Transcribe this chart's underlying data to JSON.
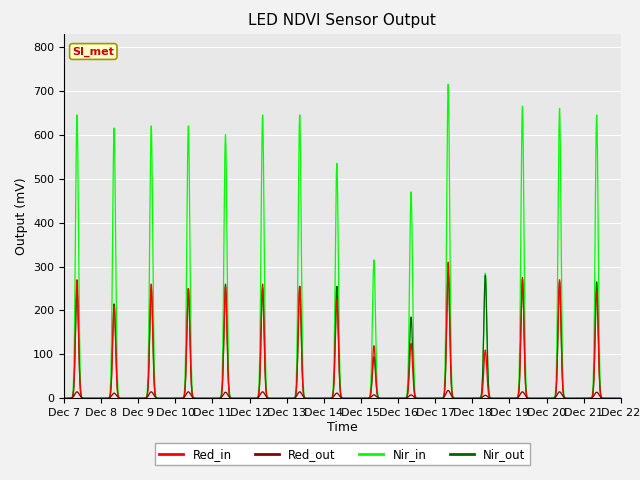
{
  "title": "LED NDVI Sensor Output",
  "ylabel": "Output (mV)",
  "xlabel": "Time",
  "ylim": [
    0,
    830
  ],
  "yticks": [
    0,
    100,
    200,
    300,
    400,
    500,
    600,
    700,
    800
  ],
  "annotation_text": "SI_met",
  "annotation_color": "#cc0000",
  "annotation_bg": "#ffffcc",
  "annotation_border": "#999900",
  "plot_bg_color": "#e8e8e8",
  "fig_bg_color": "#f2f2f2",
  "legend_entries": [
    "Red_in",
    "Red_out",
    "Nir_in",
    "Nir_out"
  ],
  "legend_colors": [
    "#ff0000",
    "#8b0000",
    "#00ff00",
    "#006400"
  ],
  "x_tick_labels": [
    "Dec 7",
    "Dec 8",
    "Dec 9",
    "Dec 10",
    "Dec 11",
    "Dec 12",
    "Dec 13",
    "Dec 14",
    "Dec 15",
    "Dec 16",
    "Dec 17",
    "Dec 18",
    "Dec 19",
    "Dec 20",
    "Dec 21",
    "Dec 22"
  ],
  "num_days": 15,
  "red_in_peaks": [
    270,
    210,
    260,
    250,
    255,
    260,
    255,
    225,
    120,
    125,
    310,
    110,
    275,
    270,
    245
  ],
  "red_out_peaks": [
    15,
    12,
    15,
    15,
    14,
    15,
    15,
    12,
    8,
    8,
    18,
    7,
    15,
    15,
    14
  ],
  "nir_in_peaks": [
    645,
    615,
    620,
    620,
    600,
    645,
    645,
    535,
    315,
    470,
    715,
    285,
    665,
    660,
    645
  ],
  "nir_out_peaks": [
    245,
    215,
    250,
    250,
    260,
    250,
    255,
    255,
    95,
    185,
    285,
    280,
    270,
    265,
    265
  ],
  "peak_sigma": 0.04,
  "peak_offsets": [
    0.35,
    0.35,
    0.35,
    0.35,
    0.35,
    0.35,
    0.35,
    0.35,
    0.35,
    0.35,
    0.35,
    0.35,
    0.35,
    0.35,
    0.35
  ],
  "figsize": [
    6.4,
    4.8
  ],
  "dpi": 100
}
